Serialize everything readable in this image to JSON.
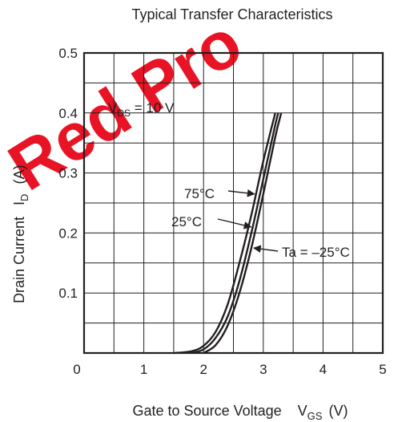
{
  "chart_data": {
    "type": "line",
    "title": "Typical Transfer Characteristics",
    "xlabel": "Gate to Source Voltage",
    "xlabel_symbol": {
      "main": "V",
      "sub": "GS",
      "unit": "(V)"
    },
    "ylabel": "Drain Current",
    "ylabel_symbol": {
      "main": "I",
      "sub": "D",
      "unit": "(A)"
    },
    "xlim": [
      0,
      5
    ],
    "ylim": [
      0,
      0.5
    ],
    "x_ticks": [
      "0",
      "1",
      "2",
      "3",
      "4",
      "5"
    ],
    "y_ticks": [
      "0.1",
      "0.2",
      "0.3",
      "0.4",
      "0.5"
    ],
    "x_tick_values": [
      0,
      1,
      2,
      3,
      4,
      5
    ],
    "y_tick_values": [
      0.1,
      0.2,
      0.3,
      0.4,
      0.5
    ],
    "grid": true,
    "grid_minor_x": 0.5,
    "grid_minor_y": 0.05,
    "condition": {
      "main": "V",
      "sub": "DS",
      "rest": " = 10 V"
    },
    "series": [
      {
        "name": "75°C",
        "x": [
          1.5,
          1.8,
          2.0,
          2.2,
          2.4,
          2.6,
          2.8,
          3.0,
          3.2
        ],
        "y": [
          0.0,
          0.003,
          0.012,
          0.035,
          0.08,
          0.15,
          0.23,
          0.32,
          0.4
        ]
      },
      {
        "name": "25°C",
        "x": [
          1.8,
          2.0,
          2.2,
          2.4,
          2.6,
          2.8,
          3.0,
          3.2,
          3.25
        ],
        "y": [
          0.0,
          0.006,
          0.025,
          0.06,
          0.12,
          0.2,
          0.29,
          0.38,
          0.4
        ]
      },
      {
        "name": "Ta = –25°C",
        "x": [
          2.0,
          2.2,
          2.4,
          2.6,
          2.8,
          3.0,
          3.2,
          3.3
        ],
        "y": [
          0.0,
          0.013,
          0.045,
          0.1,
          0.175,
          0.265,
          0.36,
          0.4
        ]
      }
    ],
    "annotations": [
      {
        "text": "75°C",
        "series": 0
      },
      {
        "text": "25°C",
        "series": 1
      },
      {
        "text": "Ta = –25°C",
        "series": 2
      }
    ],
    "watermark": {
      "text": "Red Pro",
      "color": "#e60012"
    },
    "colors": {
      "line": "#231f20",
      "grid": "#231f20",
      "background": "#ffffff"
    }
  }
}
